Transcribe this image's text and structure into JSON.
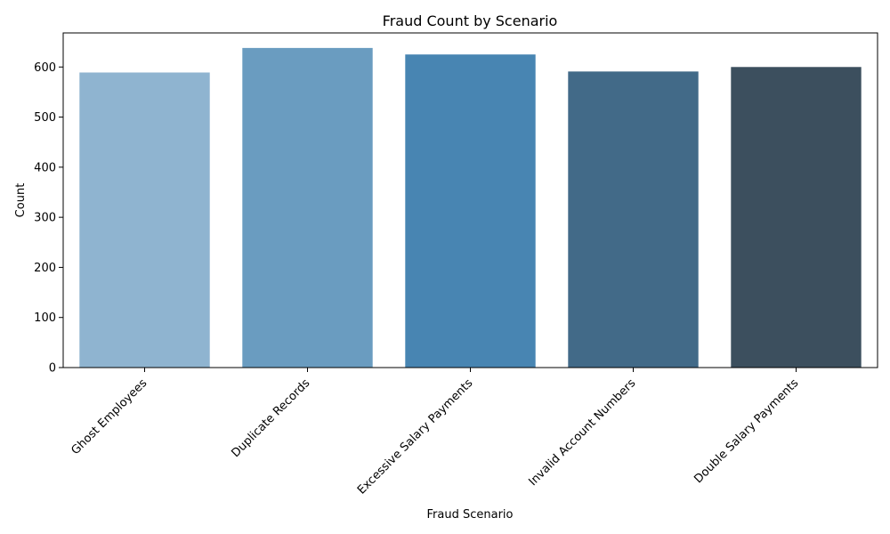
{
  "chart_data": {
    "type": "bar",
    "title": "Fraud Count by Scenario",
    "xlabel": "Fraud Scenario",
    "ylabel": "Count",
    "categories": [
      "Ghost Employees",
      "Duplicate Records",
      "Excessive Salary Payments",
      "Invalid Account Numbers",
      "Double Salary Payments"
    ],
    "values": [
      589,
      638,
      625,
      591,
      600
    ],
    "colors": [
      "#8fb4d0",
      "#6a9cc0",
      "#4885b2",
      "#426a88",
      "#3c4f5e"
    ],
    "ylim": [
      0,
      668
    ],
    "yticks": [
      0,
      100,
      200,
      300,
      400,
      500,
      600
    ],
    "ytick_labels": [
      "0",
      "100",
      "200",
      "300",
      "400",
      "500",
      "600"
    ],
    "grid": false,
    "legend": "none",
    "x_tick_rotation_deg": 45
  }
}
